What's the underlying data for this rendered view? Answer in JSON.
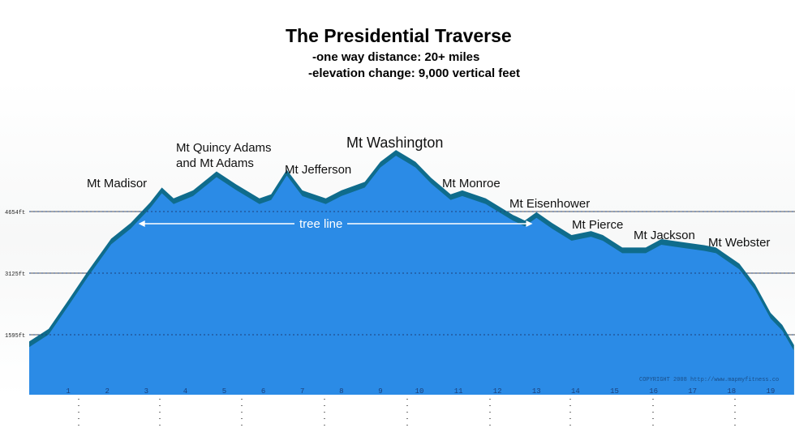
{
  "title": "The Presidential Traverse",
  "subtitles": [
    "-one way distance: 20+ miles",
    "-elevation change: 9,000 vertical feet"
  ],
  "chart_data": {
    "type": "area",
    "title": "The Presidential Traverse",
    "xlabel": "",
    "ylabel": "",
    "x_unit": "miles",
    "y_unit": "ft",
    "xlim": [
      0,
      19.6
    ],
    "ylim": [
      75,
      6200
    ],
    "x_ticks": [
      1,
      2,
      3,
      4,
      5,
      6,
      7,
      8,
      9,
      10,
      11,
      12,
      13,
      14,
      15,
      16,
      17,
      18,
      19
    ],
    "y_ticks": [
      {
        "value": 1595,
        "label": "1595ft"
      },
      {
        "value": 3125,
        "label": "3125ft"
      },
      {
        "value": 4654,
        "label": "4654ft"
      }
    ],
    "x": [
      0,
      0.5,
      1.0,
      1.5,
      2.1,
      2.6,
      3.1,
      3.4,
      3.7,
      4.2,
      4.8,
      5.3,
      5.9,
      6.2,
      6.6,
      7.0,
      7.6,
      8.0,
      8.6,
      9.0,
      9.4,
      9.9,
      10.3,
      10.8,
      11.1,
      11.7,
      12.4,
      12.7,
      13.0,
      13.4,
      13.9,
      14.4,
      14.7,
      15.2,
      15.8,
      16.2,
      16.7,
      17.3,
      17.6,
      18.2,
      18.6,
      19.0,
      19.3,
      19.6
    ],
    "y": [
      1430,
      1740,
      2450,
      3170,
      3980,
      4370,
      4880,
      5250,
      4980,
      5180,
      5650,
      5330,
      4980,
      5080,
      5690,
      5180,
      4980,
      5180,
      5390,
      5890,
      6180,
      5890,
      5490,
      5080,
      5180,
      4980,
      4570,
      4430,
      4640,
      4370,
      4070,
      4170,
      4070,
      3760,
      3760,
      3970,
      3900,
      3820,
      3760,
      3360,
      2850,
      2140,
      1840,
      1340
    ],
    "fill_color": "#2b8be6",
    "edge_color": "#0f6c8c",
    "grid": false,
    "annotations": [
      {
        "text": "Mt Madisor"
      },
      {
        "text": "Mt Quincy Adams and Mt Adams"
      },
      {
        "text": "Mt Jefferson"
      },
      {
        "text": "Mt Washington"
      },
      {
        "text": "Mt Monroe"
      },
      {
        "text": "Mt Eisenhower"
      },
      {
        "text": "Mt Pierce"
      },
      {
        "text": "Mt Jackson"
      },
      {
        "text": "Mt Webster"
      }
    ],
    "tree_line": {
      "label": "tree line",
      "from_mile": 2.8,
      "to_mile": 12.9
    },
    "copyright": "COPYRIGHT 2008 http://www.mapmyfitness.co"
  }
}
